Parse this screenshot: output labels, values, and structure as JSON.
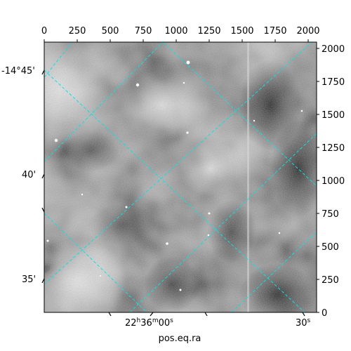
{
  "plot": {
    "xlabel": "pos.eq.ra",
    "pixel_axis_top": {
      "ticks": [
        "0",
        "250",
        "500",
        "750",
        "1000",
        "1250",
        "1500",
        "1750",
        "2000"
      ]
    },
    "pixel_axis_right": {
      "ticks": [
        "0",
        "250",
        "500",
        "750",
        "1000",
        "1250",
        "1500",
        "1750",
        "2000"
      ]
    },
    "dec_ticks_left": [
      "-14°45'",
      "40'",
      "35'"
    ],
    "ra_ticks_bottom": [
      {
        "h": "22",
        "m": "36",
        "s": "00"
      },
      {
        "s": "30"
      }
    ],
    "grid_color": "#00e5e5",
    "image_colormap": "gray"
  }
}
